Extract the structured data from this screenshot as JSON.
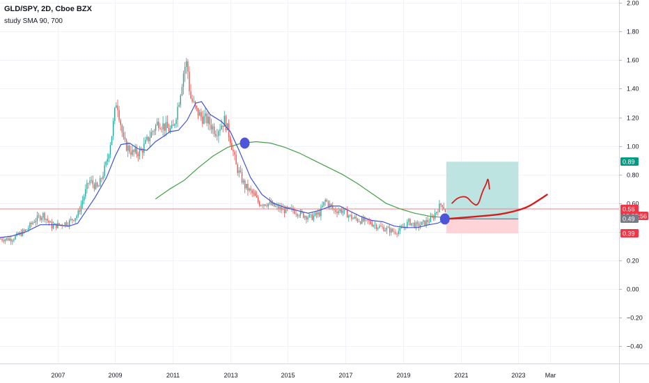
{
  "header": {
    "symbol_line": "GLD/SPY, 2D, Cboe BZX",
    "study_line": "study SMA 90, 700"
  },
  "colors": {
    "up_candle": "#26a69a",
    "down_candle": "#ef5350",
    "sma_fast": "#3f51d4",
    "sma_slow": "#43a047",
    "price_line": "#f08080",
    "target_zone": "#b2dfdb",
    "stop_zone": "#ffcdd2",
    "annotation": "#d81b1b",
    "marker": "#4e55d9"
  },
  "chart_data": {
    "type": "line",
    "ylim": [
      -0.52,
      2.02
    ],
    "xlim": [
      2005.1,
      2026.6
    ],
    "y_ticks": [
      "2.00",
      "1.80",
      "1.60",
      "1.40",
      "1.20",
      "1.00",
      "0.80",
      "0.60",
      "0.40",
      "0.20",
      "0.00",
      "−0.20",
      "−0.40"
    ],
    "x_ticks": [
      "2007",
      "2009",
      "2011",
      "2013",
      "2015",
      "2017",
      "2019",
      "2021",
      "2023",
      "Mar"
    ],
    "x_tick_years": [
      2007.1,
      2009.1,
      2011.1,
      2013.1,
      2015.1,
      2017.1,
      2019.1,
      2021.1,
      2023.1,
      2024.2
    ],
    "series": [
      {
        "key": "price",
        "x": [
          2005.1,
          2005.5,
          2006.0,
          2006.3,
          2006.6,
          2006.9,
          2007.2,
          2007.5,
          2007.8,
          2008.0,
          2008.2,
          2008.5,
          2008.8,
          2009.0,
          2009.15,
          2009.4,
          2009.7,
          2010.0,
          2010.3,
          2010.6,
          2010.9,
          2011.1,
          2011.3,
          2011.5,
          2011.6,
          2011.7,
          2011.9,
          2012.1,
          2012.3,
          2012.6,
          2012.9,
          2013.1,
          2013.3,
          2013.6,
          2013.9,
          2014.1,
          2014.4,
          2014.7,
          2015.0,
          2015.3,
          2015.6,
          2015.9,
          2016.2,
          2016.4,
          2016.7,
          2017.0,
          2017.3,
          2017.6,
          2017.9,
          2018.2,
          2018.5,
          2018.8,
          2019.0,
          2019.3,
          2019.6,
          2019.9,
          2020.1,
          2020.3,
          2020.45,
          2020.6
        ],
        "y": [
          0.35,
          0.35,
          0.41,
          0.48,
          0.52,
          0.44,
          0.45,
          0.47,
          0.52,
          0.64,
          0.76,
          0.7,
          0.88,
          1.1,
          1.33,
          1.02,
          0.95,
          0.96,
          1.07,
          1.17,
          1.12,
          1.11,
          1.3,
          1.55,
          1.58,
          1.35,
          1.25,
          1.2,
          1.18,
          1.1,
          1.18,
          1.05,
          0.86,
          0.72,
          0.66,
          0.6,
          0.6,
          0.57,
          0.55,
          0.55,
          0.52,
          0.5,
          0.53,
          0.62,
          0.55,
          0.55,
          0.5,
          0.48,
          0.47,
          0.44,
          0.42,
          0.4,
          0.41,
          0.47,
          0.44,
          0.47,
          0.49,
          0.56,
          0.6,
          0.53
        ]
      },
      {
        "key": "sma90",
        "name": "SMA 90",
        "x": [
          2005.1,
          2005.5,
          2006.0,
          2006.5,
          2007.0,
          2007.5,
          2007.8,
          2008.0,
          2008.4,
          2008.8,
          2009.1,
          2009.3,
          2009.6,
          2009.9,
          2010.2,
          2010.5,
          2010.8,
          2011.0,
          2011.3,
          2011.6,
          2011.9,
          2012.1,
          2012.4,
          2012.8,
          2013.1,
          2013.4,
          2013.8,
          2014.2,
          2014.6,
          2015.0,
          2015.4,
          2015.8,
          2016.2,
          2016.6,
          2016.9,
          2017.2,
          2017.6,
          2018.0,
          2018.4,
          2018.8,
          2019.2,
          2019.6,
          2020.0,
          2020.3,
          2020.6
        ],
        "y": [
          0.36,
          0.37,
          0.4,
          0.45,
          0.45,
          0.44,
          0.46,
          0.52,
          0.64,
          0.78,
          0.93,
          1.01,
          1.02,
          0.98,
          0.97,
          1.03,
          1.07,
          1.1,
          1.11,
          1.18,
          1.3,
          1.31,
          1.22,
          1.17,
          1.1,
          0.97,
          0.78,
          0.66,
          0.6,
          0.57,
          0.55,
          0.53,
          0.55,
          0.58,
          0.58,
          0.55,
          0.51,
          0.48,
          0.47,
          0.44,
          0.43,
          0.43,
          0.45,
          0.46,
          0.49
        ]
      },
      {
        "key": "sma700",
        "name": "SMA 700",
        "x": [
          2010.5,
          2011.0,
          2011.5,
          2012.0,
          2012.5,
          2013.0,
          2013.5,
          2014.0,
          2014.5,
          2015.0,
          2015.5,
          2016.0,
          2016.5,
          2017.0,
          2017.5,
          2018.0,
          2018.5,
          2019.0,
          2019.5,
          2020.0,
          2020.5
        ],
        "y": [
          0.63,
          0.7,
          0.76,
          0.85,
          0.93,
          0.99,
          1.02,
          1.03,
          1.02,
          0.99,
          0.95,
          0.9,
          0.85,
          0.8,
          0.74,
          0.67,
          0.6,
          0.56,
          0.53,
          0.51,
          0.5
        ]
      }
    ],
    "position": {
      "x_start": 2020.6,
      "x_end": 2023.1,
      "entry": 0.49,
      "target": 0.89,
      "stop": 0.39
    },
    "markers": [
      {
        "x": 2013.6,
        "y": 1.02
      },
      {
        "x": 2020.55,
        "y": 0.49
      }
    ],
    "drawings": [
      {
        "key": "squiggle",
        "x": [
          2020.8,
          2021.0,
          2021.3,
          2021.5,
          2021.7,
          2021.85,
          2022.0,
          2022.05,
          2022.1
        ],
        "y": [
          0.6,
          0.64,
          0.65,
          0.6,
          0.58,
          0.68,
          0.74,
          0.78,
          0.7
        ]
      },
      {
        "key": "projection",
        "x": [
          2020.6,
          2021.2,
          2021.8,
          2022.4,
          2022.9,
          2023.4,
          2023.8,
          2024.1
        ],
        "y": [
          0.49,
          0.5,
          0.51,
          0.52,
          0.54,
          0.57,
          0.62,
          0.66
        ]
      }
    ],
    "price_tags": [
      {
        "label": "0.89",
        "value": 0.89,
        "color": "#089981"
      },
      {
        "label": "0.56",
        "value": 0.56,
        "color": "#f23645"
      },
      {
        "label": "18:28:56",
        "value": 0.51,
        "color": "#f23645"
      },
      {
        "label": "0.49",
        "value": 0.49,
        "color": "#787b86"
      },
      {
        "label": "0.39",
        "value": 0.39,
        "color": "#f23645"
      }
    ]
  }
}
